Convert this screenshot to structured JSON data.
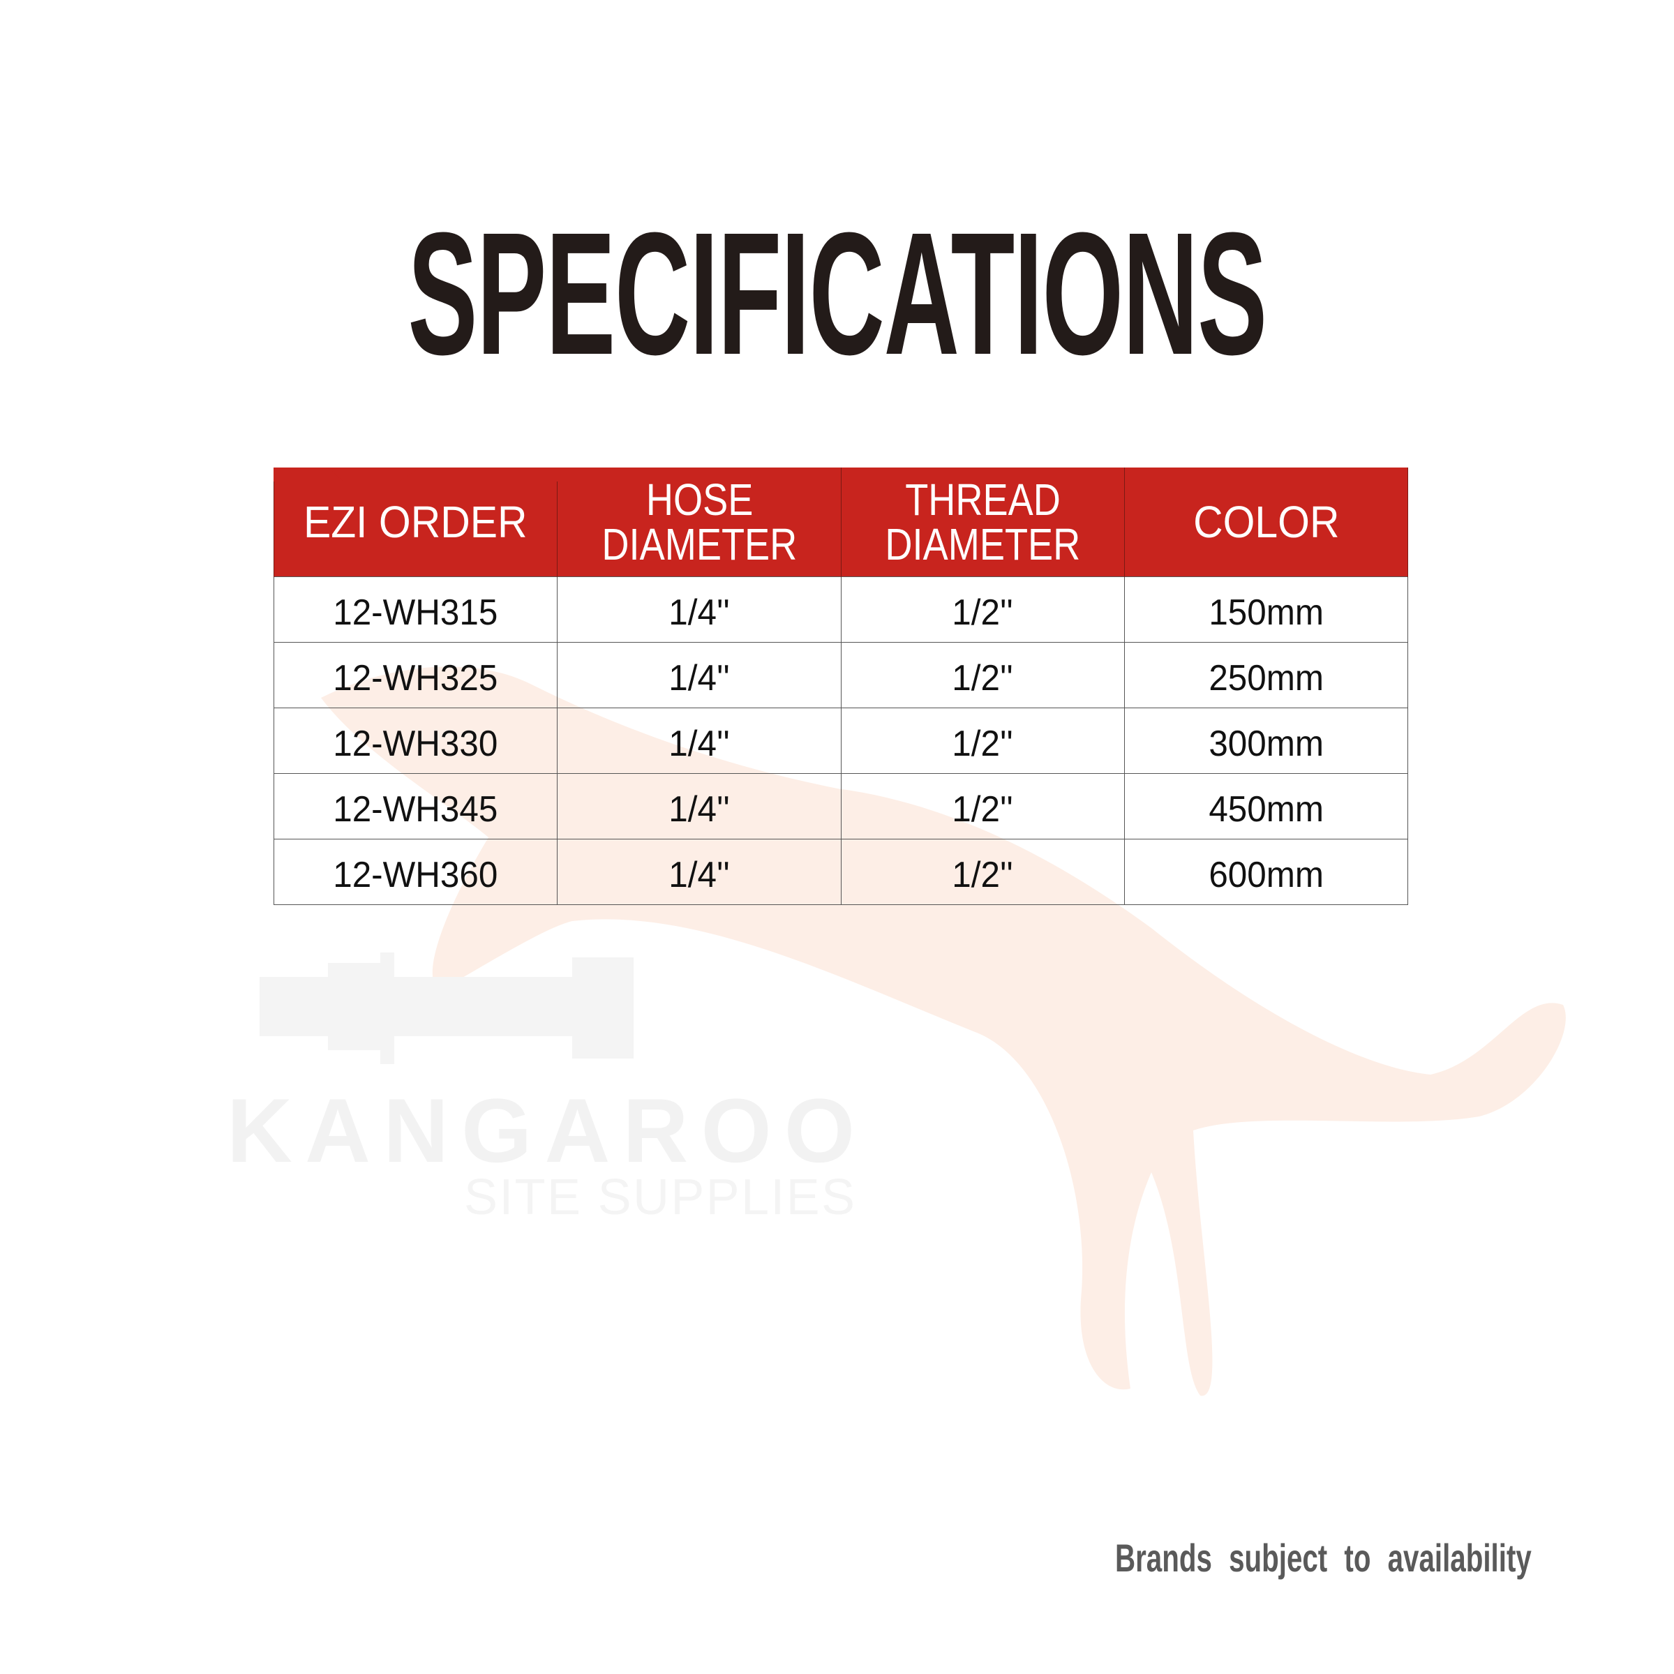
{
  "title": "SPECIFICATIONS",
  "table": {
    "headers": [
      {
        "line1": "EZI ORDER",
        "line2": ""
      },
      {
        "line1": "HOSE",
        "line2": "DIAMETER"
      },
      {
        "line1": "THREAD",
        "line2": "DIAMETER"
      },
      {
        "line1": "COLOR",
        "line2": ""
      }
    ],
    "rows": [
      [
        "12-WH315",
        "1/4''",
        "1/2''",
        "150mm"
      ],
      [
        "12-WH325",
        "1/4''",
        "1/2''",
        "250mm"
      ],
      [
        "12-WH330",
        "1/4''",
        "1/2''",
        "300mm"
      ],
      [
        "12-WH345",
        "1/4''",
        "1/2''",
        "450mm"
      ],
      [
        "12-WH360",
        "1/4''",
        "1/2''",
        "600mm"
      ]
    ]
  },
  "watermark": {
    "brand": "KANGAROO",
    "tagline": "SITE SUPPLIES"
  },
  "footnote": "Brands subject to availability",
  "colors": {
    "header_bg": "#c8241e",
    "title": "#231b19",
    "footnote": "#5a5a5a",
    "watermark": "#fbe4d8"
  }
}
